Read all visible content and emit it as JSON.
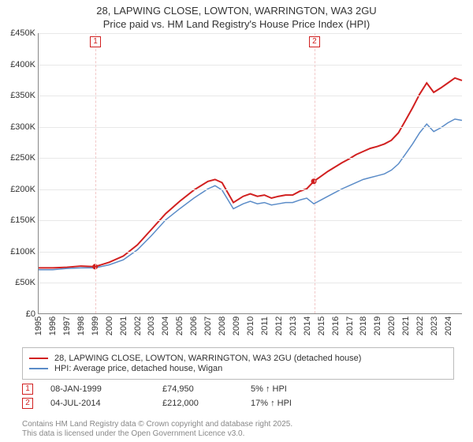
{
  "title_line1": "28, LAPWING CLOSE, LOWTON, WARRINGTON, WA3 2GU",
  "title_line2": "Price paid vs. HM Land Registry's House Price Index (HPI)",
  "chart": {
    "type": "line",
    "background_color": "#ffffff",
    "grid_color": "#e8e8e8",
    "axis_color": "#888888",
    "ylim": [
      0,
      450000
    ],
    "ytick_step": 50000,
    "yticks": [
      "£0",
      "£50K",
      "£100K",
      "£150K",
      "£200K",
      "£250K",
      "£300K",
      "£350K",
      "£400K",
      "£450K"
    ],
    "xlim": [
      1995,
      2025
    ],
    "xticks": [
      1995,
      1996,
      1997,
      1998,
      1999,
      2000,
      2001,
      2002,
      2003,
      2004,
      2005,
      2006,
      2007,
      2008,
      2009,
      2010,
      2011,
      2012,
      2013,
      2014,
      2015,
      2016,
      2017,
      2018,
      2019,
      2020,
      2021,
      2022,
      2023,
      2024
    ],
    "series": [
      {
        "name": "28, LAPWING CLOSE, LOWTON, WARRINGTON, WA3 2GU (detached house)",
        "color": "#d12020",
        "line_width": 2,
        "data": [
          [
            1995,
            73000
          ],
          [
            1996,
            73000
          ],
          [
            1997,
            74000
          ],
          [
            1998,
            76000
          ],
          [
            1999,
            74950
          ],
          [
            2000,
            82000
          ],
          [
            2001,
            92000
          ],
          [
            2002,
            110000
          ],
          [
            2003,
            135000
          ],
          [
            2004,
            160000
          ],
          [
            2005,
            180000
          ],
          [
            2006,
            198000
          ],
          [
            2007,
            212000
          ],
          [
            2007.5,
            215000
          ],
          [
            2008,
            210000
          ],
          [
            2008.8,
            178000
          ],
          [
            2009.5,
            188000
          ],
          [
            2010,
            192000
          ],
          [
            2010.5,
            188000
          ],
          [
            2011,
            190000
          ],
          [
            2011.5,
            185000
          ],
          [
            2012,
            188000
          ],
          [
            2012.5,
            190000
          ],
          [
            2013,
            190000
          ],
          [
            2013.5,
            196000
          ],
          [
            2014,
            200000
          ],
          [
            2014.5,
            212000
          ],
          [
            2015,
            220000
          ],
          [
            2015.5,
            228000
          ],
          [
            2016,
            235000
          ],
          [
            2016.5,
            242000
          ],
          [
            2017,
            248000
          ],
          [
            2017.5,
            255000
          ],
          [
            2018,
            260000
          ],
          [
            2018.5,
            265000
          ],
          [
            2019,
            268000
          ],
          [
            2019.5,
            272000
          ],
          [
            2020,
            278000
          ],
          [
            2020.5,
            290000
          ],
          [
            2021,
            310000
          ],
          [
            2021.5,
            330000
          ],
          [
            2022,
            352000
          ],
          [
            2022.5,
            370000
          ],
          [
            2023,
            355000
          ],
          [
            2023.5,
            362000
          ],
          [
            2024,
            370000
          ],
          [
            2024.5,
            378000
          ],
          [
            2025,
            374000
          ]
        ]
      },
      {
        "name": "HPI: Average price, detached house, Wigan",
        "color": "#5b8cc8",
        "line_width": 1.5,
        "data": [
          [
            1995,
            70000
          ],
          [
            1996,
            70000
          ],
          [
            1997,
            72000
          ],
          [
            1998,
            73000
          ],
          [
            1999,
            73000
          ],
          [
            2000,
            78000
          ],
          [
            2001,
            86000
          ],
          [
            2002,
            102000
          ],
          [
            2003,
            125000
          ],
          [
            2004,
            150000
          ],
          [
            2005,
            168000
          ],
          [
            2006,
            185000
          ],
          [
            2007,
            200000
          ],
          [
            2007.5,
            205000
          ],
          [
            2008,
            198000
          ],
          [
            2008.8,
            168000
          ],
          [
            2009.5,
            176000
          ],
          [
            2010,
            180000
          ],
          [
            2010.5,
            176000
          ],
          [
            2011,
            178000
          ],
          [
            2011.5,
            174000
          ],
          [
            2012,
            176000
          ],
          [
            2012.5,
            178000
          ],
          [
            2013,
            178000
          ],
          [
            2013.5,
            182000
          ],
          [
            2014,
            185000
          ],
          [
            2014.5,
            176000
          ],
          [
            2015,
            182000
          ],
          [
            2015.5,
            188000
          ],
          [
            2016,
            194000
          ],
          [
            2016.5,
            200000
          ],
          [
            2017,
            205000
          ],
          [
            2017.5,
            210000
          ],
          [
            2018,
            215000
          ],
          [
            2018.5,
            218000
          ],
          [
            2019,
            221000
          ],
          [
            2019.5,
            224000
          ],
          [
            2020,
            230000
          ],
          [
            2020.5,
            240000
          ],
          [
            2021,
            256000
          ],
          [
            2021.5,
            272000
          ],
          [
            2022,
            290000
          ],
          [
            2022.5,
            304000
          ],
          [
            2023,
            292000
          ],
          [
            2023.5,
            298000
          ],
          [
            2024,
            306000
          ],
          [
            2024.5,
            312000
          ],
          [
            2025,
            310000
          ]
        ]
      }
    ],
    "price_markers": [
      {
        "n": 1,
        "x": 1999.02,
        "color": "#d12020"
      },
      {
        "n": 2,
        "x": 2014.51,
        "color": "#d12020"
      }
    ]
  },
  "legend": {
    "border_color": "#bbbbbb"
  },
  "price_points": [
    {
      "n": 1,
      "date": "08-JAN-1999",
      "price": "£74,950",
      "pct": "5% ↑ HPI",
      "color": "#d12020"
    },
    {
      "n": 2,
      "date": "04-JUL-2014",
      "price": "£212,000",
      "pct": "17% ↑ HPI",
      "color": "#d12020"
    }
  ],
  "footer_line1": "Contains HM Land Registry data © Crown copyright and database right 2025.",
  "footer_line2": "This data is licensed under the Open Government Licence v3.0."
}
